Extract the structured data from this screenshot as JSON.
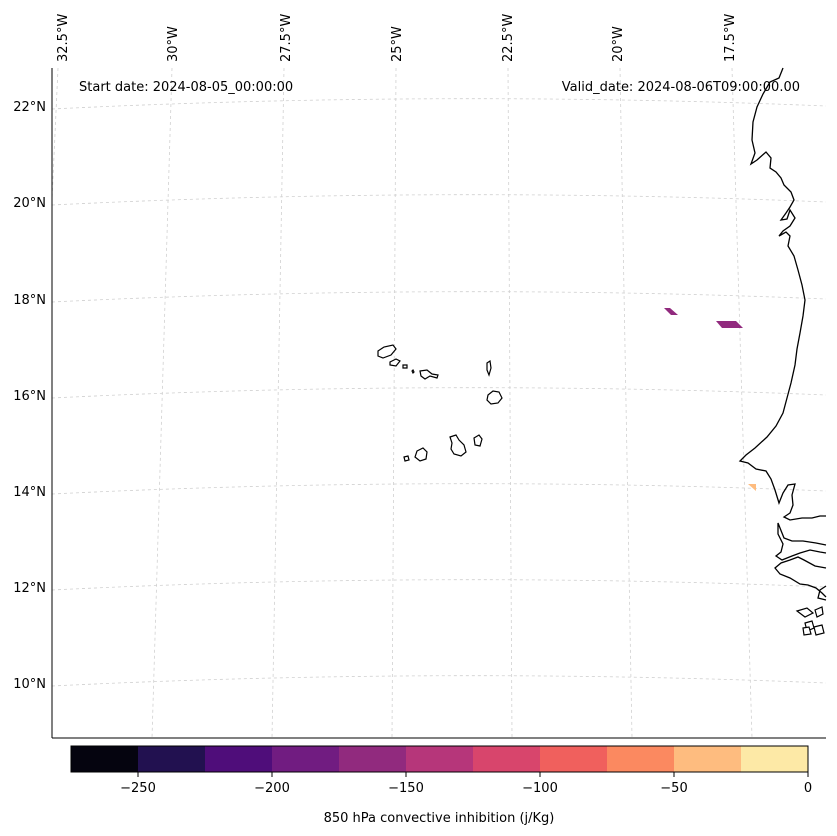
{
  "annotations": {
    "start_date": "Start date: 2024-08-05_00:00:00",
    "valid_date": "Valid_date: 2024-08-06T09:00:00.00"
  },
  "axes": {
    "lon_labels": [
      "32.5°W",
      "30°W",
      "27.5°W",
      "25°W",
      "22.5°W",
      "20°W",
      "17.5°W"
    ],
    "lon_values": [
      -32.5,
      -30,
      -27.5,
      -25,
      -22.5,
      -20,
      -17.5
    ],
    "lat_labels": [
      "22°N",
      "20°N",
      "18°N",
      "16°N",
      "14°N",
      "12°N",
      "10°N"
    ],
    "lat_values": [
      22,
      20,
      18,
      16,
      14,
      12,
      10
    ]
  },
  "colorbar": {
    "label": "850 hPa convective inhibition (j/Kg)",
    "tick_labels": [
      "−250",
      "−200",
      "−150",
      "−100",
      "−50",
      "0"
    ],
    "tick_values": [
      -250,
      -200,
      -150,
      -100,
      -50,
      0
    ],
    "bounds": [
      -275,
      -250,
      -225,
      -200,
      -175,
      -150,
      -125,
      -100,
      -75,
      -50,
      -25,
      0
    ],
    "colors": [
      "#05040f",
      "#221150",
      "#4f0d7a",
      "#711c81",
      "#912a7e",
      "#b6367a",
      "#d8456c",
      "#f0605d",
      "#fb8960",
      "#febc7f",
      "#fde9a6"
    ]
  },
  "map_data": {
    "variable": "850 hPa convective inhibition",
    "units": "j/Kg",
    "cells": [
      {
        "value": -162,
        "color": "#912a7e"
      },
      {
        "value": -162,
        "color": "#912a7e"
      },
      {
        "value": -40,
        "color": "#febc7f"
      }
    ]
  }
}
